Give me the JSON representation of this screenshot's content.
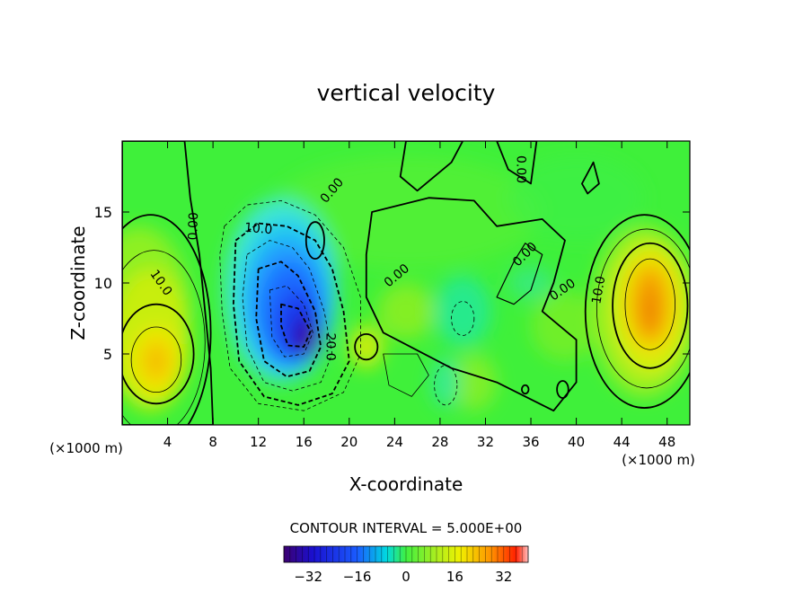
{
  "chart_data": {
    "type": "heatmap",
    "title": "vertical velocity",
    "xlabel": "X-coordinate",
    "ylabel": "Z-coordinate",
    "x_unit_left": "(×1000 m)",
    "x_unit_right": "(×1000 m)",
    "xlim": [
      0,
      50
    ],
    "ylim": [
      0,
      20
    ],
    "x_ticks": [
      4,
      8,
      12,
      16,
      20,
      24,
      28,
      32,
      36,
      40,
      44,
      48
    ],
    "y_ticks": [
      5,
      10,
      15
    ],
    "contour_interval_text": "CONTOUR INTERVAL = 5.000E+00",
    "colorbar": {
      "range": [
        -40,
        40
      ],
      "ticks": [
        -32,
        -16,
        0,
        16,
        32
      ],
      "tick_labels": [
        "−32",
        "−16",
        "0",
        "16",
        "32"
      ]
    },
    "contour_labels": [
      {
        "text": "0.00",
        "x": 6.3,
        "z": 14.0,
        "angle": -88
      },
      {
        "text": "10.0",
        "x": 3.4,
        "z": 10.0,
        "angle": 55
      },
      {
        "text": "10.0",
        "x": 12.0,
        "z": 13.8,
        "angle": 5
      },
      {
        "text": "0.00",
        "x": 18.5,
        "z": 16.5,
        "angle": -50
      },
      {
        "text": "20.0",
        "x": 18.3,
        "z": 5.5,
        "angle": 90
      },
      {
        "text": "0.00",
        "x": 24.2,
        "z": 10.5,
        "angle": -40
      },
      {
        "text": "0.00",
        "x": 35.5,
        "z": 12.0,
        "angle": -45
      },
      {
        "text": "0.00",
        "x": 38.8,
        "z": 9.5,
        "angle": -35
      },
      {
        "text": "0.00",
        "x": 35.1,
        "z": 18.0,
        "angle": 90
      },
      {
        "text": "10.0",
        "x": 42.0,
        "z": 9.5,
        "angle": -80
      }
    ],
    "features": [
      {
        "kind": "updraft",
        "x": 3,
        "z": 4.5,
        "peak": 18
      },
      {
        "kind": "updraft",
        "x": 46.5,
        "z": 8.5,
        "peak": 24
      },
      {
        "kind": "downdraft",
        "x": 14.5,
        "z": 8.0,
        "peak": -28
      },
      {
        "kind": "downdraft",
        "x": 16.5,
        "z": 5.8,
        "peak": -40
      },
      {
        "kind": "updraft",
        "x": 21.5,
        "z": 5.5,
        "peak": 9
      },
      {
        "kind": "updraft",
        "x": 17,
        "z": 13,
        "peak": 8
      },
      {
        "kind": "downdraft",
        "x": 30,
        "z": 8,
        "peak": -6
      },
      {
        "kind": "downdraft",
        "x": 28,
        "z": 3,
        "peak": -5
      }
    ]
  }
}
